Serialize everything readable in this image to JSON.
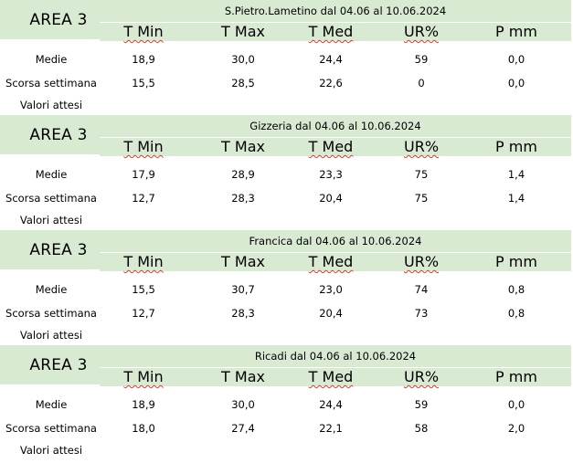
{
  "columns": [
    "T Min",
    "T Max",
    "T Med",
    "UR%",
    "P mm"
  ],
  "row_labels": {
    "medie": "Medie",
    "scorsa": "Scorsa settimana",
    "attesi": "Valori attesi"
  },
  "areas": [
    {
      "area": "AREA 3",
      "title": "S.Pietro.Lametino dal 04.06 al 10.06.2024",
      "medie": [
        "18,9",
        "30,0",
        "24,4",
        "59",
        "0,0"
      ],
      "scorsa": [
        "15,5",
        "28,5",
        "22,6",
        "0",
        "0,0"
      ]
    },
    {
      "area": "AREA 3",
      "title": "Gizzeria dal 04.06 al 10.06.2024",
      "medie": [
        "17,9",
        "28,9",
        "23,3",
        "75",
        "1,4"
      ],
      "scorsa": [
        "12,7",
        "28,3",
        "20,4",
        "75",
        "1,4"
      ]
    },
    {
      "area": "AREA 3",
      "title": "Francica dal 04.06 al 10.06.2024",
      "medie": [
        "15,5",
        "30,7",
        "23,0",
        "74",
        "0,8"
      ],
      "scorsa": [
        "12,7",
        "28,3",
        "20,4",
        "73",
        "0,8"
      ]
    },
    {
      "area": "AREA 3",
      "title": "Ricadi  dal 04.06 al 10.06.2024",
      "medie": [
        "18,9",
        "30,0",
        "24,4",
        "59",
        "0,0"
      ],
      "scorsa": [
        "18,0",
        "27,4",
        "22,1",
        "58",
        "2,0"
      ]
    }
  ]
}
